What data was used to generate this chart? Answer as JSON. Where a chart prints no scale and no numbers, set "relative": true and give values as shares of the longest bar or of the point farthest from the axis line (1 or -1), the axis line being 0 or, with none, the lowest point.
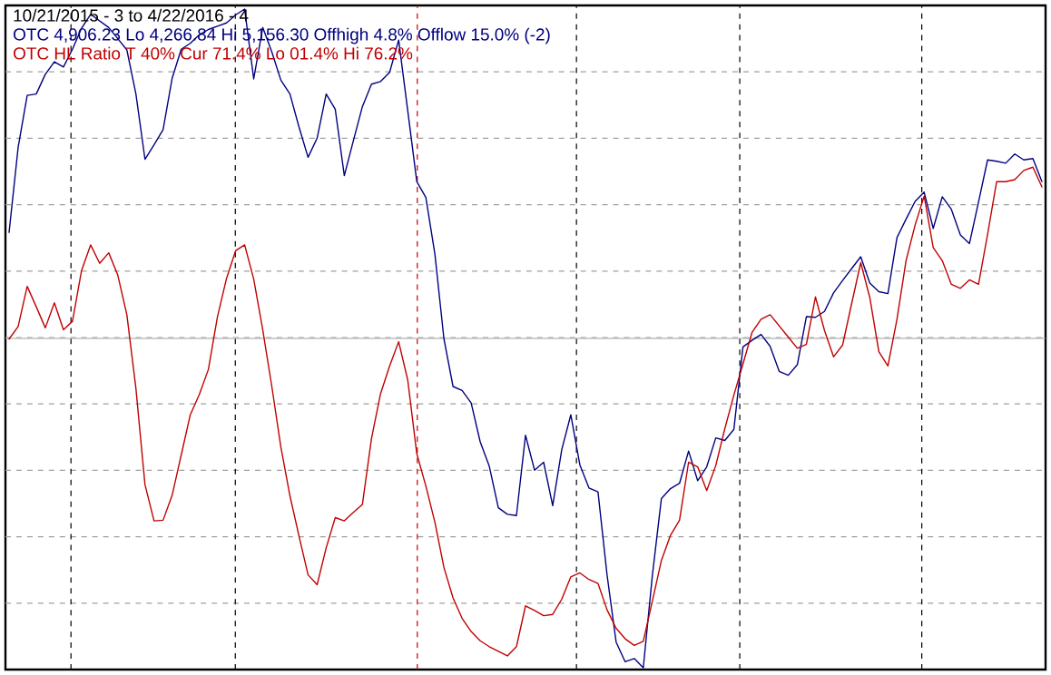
{
  "chart_data": {
    "type": "line",
    "relative": true,
    "title": "10/21/2015 - 3 to 4/22/2016 - 4",
    "grid": "y",
    "marker": "none",
    "line_style": "solid",
    "categories": [
      null,
      null,
      null,
      null,
      null,
      null,
      null,
      null,
      null,
      null,
      null,
      null,
      null,
      null,
      null,
      null,
      null,
      null,
      null,
      null,
      null,
      null,
      null,
      null,
      null,
      null,
      null,
      null,
      null,
      null,
      null,
      null,
      null,
      null,
      null,
      null,
      null,
      null,
      null,
      null,
      null,
      null,
      null,
      null,
      null,
      null,
      null,
      null,
      null,
      null,
      null,
      null,
      null,
      null,
      null,
      null,
      null,
      null,
      null,
      null,
      null,
      null,
      null,
      null,
      null,
      null,
      null,
      null,
      null,
      null,
      null,
      null,
      null,
      null,
      null,
      null,
      null,
      null,
      null,
      null,
      null,
      null,
      null,
      null,
      null,
      null,
      null,
      null,
      null,
      null,
      null,
      null,
      null,
      null,
      null,
      null,
      null,
      null,
      null,
      null,
      null,
      null,
      null,
      null,
      null,
      null,
      null,
      null,
      null,
      null,
      null,
      null,
      null,
      null,
      null
    ],
    "series": [
      {
        "name": "OTC 4,906.23 Lo 4,266.84 Hi 5,156.30 Offhigh 4.8% Offlow 15.0% (-2)",
        "color": "#000080",
        "values": [
          0.661,
          0.79,
          0.869,
          0.871,
          0.901,
          0.92,
          0.912,
          0.939,
          0.971,
          0.992,
          0.982,
          0.972,
          0.955,
          0.938,
          0.871,
          0.772,
          0.794,
          0.817,
          0.895,
          0.939,
          0.948,
          0.961,
          0.969,
          0.974,
          0.979,
          0.991,
          1,
          0.894,
          0.972,
          0.935,
          0.892,
          0.871,
          0.821,
          0.775,
          0.804,
          0.871,
          0.848,
          0.747,
          0.8,
          0.852,
          0.886,
          0.89,
          0.904,
          0.953,
          0.846,
          0.738,
          0.714,
          0.628,
          0.499,
          0.427,
          0.421,
          0.402,
          0.343,
          0.306,
          0.243,
          0.233,
          0.231,
          0.353,
          0.3,
          0.312,
          0.246,
          0.331,
          0.384,
          0.308,
          0.273,
          0.267,
          0.141,
          0.039,
          0.009,
          0.014,
          0,
          0.14,
          0.257,
          0.272,
          0.28,
          0.329,
          0.284,
          0.305,
          0.349,
          0.345,
          0.362,
          0.487,
          0.497,
          0.506,
          0.488,
          0.45,
          0.444,
          0.46,
          0.533,
          0.532,
          0.541,
          0.569,
          0.588,
          0.606,
          0.624,
          0.584,
          0.571,
          0.568,
          0.653,
          0.681,
          0.708,
          0.722,
          0.667,
          0.715,
          0.696,
          0.657,
          0.644,
          0.707,
          0.771,
          0.769,
          0.766,
          0.78,
          0.771,
          0.773,
          0.738
        ]
      },
      {
        "name": "OTC HL Ratio T 40% Cur 71.4% Lo 01.4% Hi 76.2%",
        "color": "#c00000",
        "values": [
          0.499,
          0.518,
          0.579,
          0.548,
          0.516,
          0.554,
          0.513,
          0.526,
          0.603,
          0.642,
          0.614,
          0.63,
          0.596,
          0.536,
          0.424,
          0.278,
          0.223,
          0.224,
          0.262,
          0.323,
          0.384,
          0.415,
          0.453,
          0.533,
          0.591,
          0.633,
          0.642,
          0.59,
          0.513,
          0.427,
          0.335,
          0.261,
          0.2,
          0.141,
          0.126,
          0.182,
          0.228,
          0.223,
          0.236,
          0.248,
          0.348,
          0.416,
          0.458,
          0.495,
          0.437,
          0.325,
          0.276,
          0.221,
          0.152,
          0.106,
          0.075,
          0.055,
          0.041,
          0.032,
          0.025,
          0.018,
          0.032,
          0.094,
          0.087,
          0.079,
          0.081,
          0.104,
          0.138,
          0.144,
          0.134,
          0.128,
          0.088,
          0.06,
          0.044,
          0.034,
          0.04,
          0.101,
          0.163,
          0.201,
          0.224,
          0.312,
          0.305,
          0.269,
          0.307,
          0.363,
          0.414,
          0.461,
          0.509,
          0.529,
          0.536,
          0.519,
          0.502,
          0.485,
          0.491,
          0.563,
          0.512,
          0.472,
          0.49,
          0.553,
          0.615,
          0.562,
          0.48,
          0.458,
          0.529,
          0.618,
          0.672,
          0.716,
          0.638,
          0.618,
          0.582,
          0.576,
          0.589,
          0.582,
          0.658,
          0.738,
          0.738,
          0.741,
          0.755,
          0.76,
          0.73
        ]
      }
    ],
    "ref_lines": [
      {
        "axis": "y",
        "value": 0.5,
        "color": "#a0a0a0",
        "line_style": "solid"
      }
    ]
  }
}
